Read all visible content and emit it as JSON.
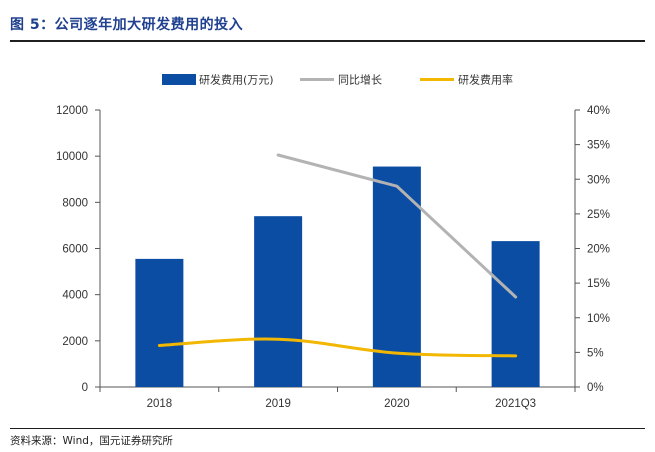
{
  "figure": {
    "title": "图 5：公司逐年加大研发费用的投入",
    "source": "资料来源：Wind，国元证券研究所"
  },
  "colors": {
    "title": "#1f3f8f",
    "bar": "#0b4da2",
    "growth_line": "#b3b3b3",
    "rate_line": "#f2b701",
    "axis": "#555555",
    "text": "#333333"
  },
  "chart_data": {
    "type": "bar",
    "categories": [
      "2018",
      "2019",
      "2020",
      "2021Q3"
    ],
    "series": [
      {
        "name": "研发费用(万元)",
        "type": "bar",
        "axis": "left",
        "values": [
          5550,
          7400,
          9550,
          6320
        ]
      },
      {
        "name": "同比增长",
        "type": "line",
        "axis": "right",
        "values": [
          null,
          0.335,
          0.29,
          0.13
        ]
      },
      {
        "name": "研发费用率",
        "type": "line",
        "axis": "right",
        "values": [
          0.06,
          0.069,
          0.049,
          0.045
        ]
      }
    ],
    "y_left": {
      "min": 0,
      "max": 12000,
      "ticks": [
        "0",
        "2000",
        "4000",
        "6000",
        "8000",
        "10000",
        "12000"
      ]
    },
    "y_right": {
      "min": 0,
      "max": 0.4,
      "ticks": [
        "0%",
        "5%",
        "10%",
        "15%",
        "20%",
        "25%",
        "30%",
        "35%",
        "40%"
      ]
    },
    "legend_position": "top-center",
    "grid": false
  }
}
